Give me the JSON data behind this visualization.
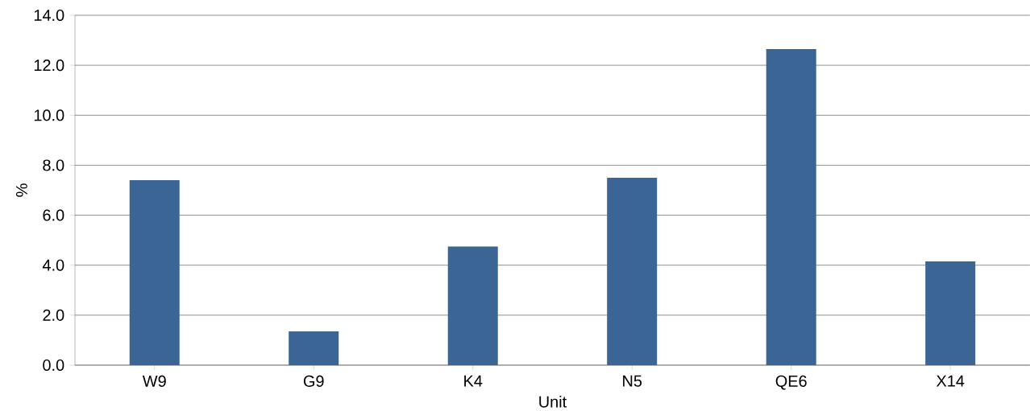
{
  "chart_data": {
    "type": "bar",
    "xlabel": "Unit",
    "ylabel": "%",
    "categories": [
      "W9",
      "G9",
      "K4",
      "N5",
      "QE6",
      "X14"
    ],
    "values": [
      7.4,
      1.35,
      4.75,
      7.5,
      12.65,
      4.15
    ],
    "color": "#3a6595",
    "ylim": [
      0,
      14
    ],
    "yticks": [
      {
        "value": 0,
        "label": "0.0"
      },
      {
        "value": 2,
        "label": "2.0"
      },
      {
        "value": 4,
        "label": "4.0"
      },
      {
        "value": 6,
        "label": "6.0"
      },
      {
        "value": 8,
        "label": "8.0"
      },
      {
        "value": 10,
        "label": "10.0"
      },
      {
        "value": 12,
        "label": "12.0"
      },
      {
        "value": 14,
        "label": "14.0"
      }
    ],
    "grid": "y"
  }
}
